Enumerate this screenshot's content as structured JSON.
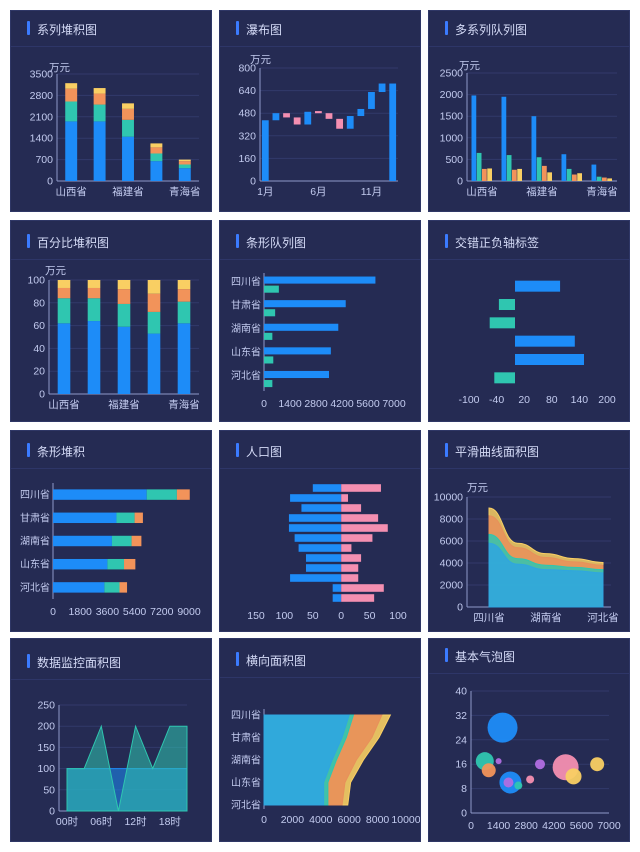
{
  "chart_data": [
    {
      "id": "p1",
      "type": "bar",
      "title": "系列堆积图",
      "stacked": true,
      "unit": "万元",
      "categories": [
        "山西省",
        "",
        "福建省",
        "",
        "青海省"
      ],
      "x_tick_labels": [
        "山西省",
        "福建省",
        "青海省"
      ],
      "y_ticks": [
        "0",
        "700",
        "1400",
        "2100",
        "2800",
        "3500"
      ],
      "ylim": [
        0,
        3500
      ],
      "series": [
        {
          "values": [
            1950,
            1950,
            1450,
            650,
            420
          ],
          "color": "#1d8cf8"
        },
        {
          "values": [
            650,
            550,
            550,
            250,
            120
          ],
          "color": "#2fc6b0"
        },
        {
          "values": [
            420,
            360,
            360,
            200,
            110
          ],
          "color": "#f2935a"
        },
        {
          "values": [
            180,
            180,
            180,
            130,
            50
          ],
          "color": "#f9cf63"
        }
      ]
    },
    {
      "id": "p2",
      "type": "bar",
      "title": "瀑布图",
      "chart_subtype": "waterfall",
      "unit": "万元",
      "x_tick_labels": [
        "1月",
        "6月",
        "11月"
      ],
      "x_tick_index": [
        0,
        5,
        10
      ],
      "y_ticks": [
        "0",
        "160",
        "320",
        "480",
        "640",
        "800"
      ],
      "ylim": [
        0,
        800
      ],
      "bars": [
        {
          "low": 0,
          "high": 430,
          "color": "#1d8cf8"
        },
        {
          "low": 430,
          "high": 480,
          "color": "#1d8cf8"
        },
        {
          "low": 450,
          "high": 480,
          "color": "#f48fb1"
        },
        {
          "low": 400,
          "high": 450,
          "color": "#f48fb1"
        },
        {
          "low": 400,
          "high": 490,
          "color": "#1d8cf8"
        },
        {
          "low": 480,
          "high": 495,
          "color": "#f48fb1"
        },
        {
          "low": 440,
          "high": 480,
          "color": "#f48fb1"
        },
        {
          "low": 370,
          "high": 440,
          "color": "#f48fb1"
        },
        {
          "low": 370,
          "high": 460,
          "color": "#1d8cf8"
        },
        {
          "low": 460,
          "high": 510,
          "color": "#1d8cf8"
        },
        {
          "low": 510,
          "high": 630,
          "color": "#1d8cf8"
        },
        {
          "low": 630,
          "high": 690,
          "color": "#1d8cf8"
        },
        {
          "low": 0,
          "high": 690,
          "color": "#1d8cf8"
        }
      ]
    },
    {
      "id": "p3",
      "type": "bar",
      "title": "多系列队列图",
      "grouped": true,
      "unit": "万元",
      "categories": [
        "山西省",
        "",
        "福建省",
        "",
        "青海省"
      ],
      "x_tick_labels": [
        "山西省",
        "福建省",
        "青海省"
      ],
      "y_ticks": [
        "0",
        "500",
        "1000",
        "1500",
        "2000",
        "2500"
      ],
      "ylim": [
        0,
        2500
      ],
      "series": [
        {
          "values": [
            1980,
            1950,
            1500,
            620,
            380
          ],
          "color": "#1d8cf8"
        },
        {
          "values": [
            650,
            600,
            550,
            280,
            100
          ],
          "color": "#2fc6b0"
        },
        {
          "values": [
            280,
            260,
            350,
            150,
            80
          ],
          "color": "#f2935a"
        },
        {
          "values": [
            290,
            280,
            200,
            180,
            60
          ],
          "color": "#f9cf63"
        }
      ]
    },
    {
      "id": "p4",
      "type": "bar",
      "title": "百分比堆积图",
      "stacked": true,
      "unit": "万元",
      "categories": [
        "山西省",
        "",
        "福建省",
        "",
        "青海省"
      ],
      "x_tick_labels": [
        "山西省",
        "福建省",
        "青海省"
      ],
      "y_ticks": [
        "0",
        "20",
        "40",
        "60",
        "80",
        "100"
      ],
      "ylim": [
        0,
        100
      ],
      "series": [
        {
          "values": [
            62,
            64,
            59,
            53,
            62
          ],
          "color": "#1d8cf8"
        },
        {
          "values": [
            22,
            20,
            20,
            19,
            19
          ],
          "color": "#2fc6b0"
        },
        {
          "values": [
            9,
            9,
            13,
            16,
            11
          ],
          "color": "#f2935a"
        },
        {
          "values": [
            7,
            7,
            8,
            12,
            8
          ],
          "color": "#f9cf63"
        }
      ]
    },
    {
      "id": "p5",
      "type": "bar",
      "title": "条形队列图",
      "orientation": "horizontal",
      "grouped": true,
      "categories": [
        "四川省",
        "甘肃省",
        "湖南省",
        "山东省",
        "河北省"
      ],
      "x_ticks": [
        "0",
        "1400",
        "2800",
        "4200",
        "5600",
        "7000"
      ],
      "xlim": [
        0,
        7000
      ],
      "series": [
        {
          "values": [
            6000,
            4400,
            4000,
            3600,
            3500
          ],
          "color": "#1d8cf8"
        },
        {
          "values": [
            800,
            600,
            450,
            500,
            450
          ],
          "color": "#2fc6b0"
        }
      ]
    },
    {
      "id": "p6",
      "type": "bar",
      "title": "交错正负轴标签",
      "orientation": "horizontal",
      "x_ticks": [
        "-100",
        "-40",
        "20",
        "80",
        "140",
        "200"
      ],
      "xlim": [
        -100,
        200
      ],
      "bars": [
        {
          "value": 98,
          "color": "#1d8cf8"
        },
        {
          "value": -35,
          "color": "#2fc6b0"
        },
        {
          "value": -55,
          "color": "#2fc6b0"
        },
        {
          "value": 130,
          "color": "#1d8cf8"
        },
        {
          "value": 150,
          "color": "#1d8cf8"
        },
        {
          "value": -45,
          "color": "#2fc6b0"
        }
      ]
    },
    {
      "id": "p7",
      "type": "bar",
      "title": "条形堆积",
      "orientation": "horizontal",
      "stacked": true,
      "categories": [
        "四川省",
        "甘肃省",
        "湖南省",
        "山东省",
        "河北省"
      ],
      "x_ticks": [
        "0",
        "1800",
        "3600",
        "5400",
        "7200",
        "9000"
      ],
      "xlim": [
        0,
        9000
      ],
      "series": [
        {
          "values": [
            6200,
            4200,
            3900,
            3600,
            3400
          ],
          "color": "#1d8cf8"
        },
        {
          "values": [
            2000,
            1200,
            1300,
            1100,
            1000
          ],
          "color": "#2fc6b0"
        },
        {
          "values": [
            850,
            550,
            650,
            750,
            500
          ],
          "color": "#f2935a"
        }
      ]
    },
    {
      "id": "p8",
      "type": "bar",
      "title": "人口图",
      "orientation": "horizontal",
      "chart_subtype": "population-pyramid",
      "x_ticks": [
        "150",
        "100",
        "50",
        "0",
        "50",
        "100"
      ],
      "xlim": [
        -150,
        100
      ],
      "series": [
        {
          "values": [
            50,
            90,
            70,
            92,
            92,
            82,
            75,
            62,
            62,
            90,
            15,
            15
          ],
          "color": "#1d8cf8",
          "side": "left"
        },
        {
          "values": [
            70,
            12,
            35,
            65,
            82,
            55,
            18,
            35,
            30,
            30,
            75,
            58
          ],
          "color": "#f48fb1",
          "side": "right"
        }
      ]
    },
    {
      "id": "p9",
      "type": "area",
      "title": "平滑曲线面积图",
      "stacked": true,
      "smooth": true,
      "unit": "万元",
      "categories": [
        "四川省",
        "",
        "湖南省",
        "",
        "河北省"
      ],
      "x_tick_labels": [
        "四川省",
        "湖南省",
        "河北省"
      ],
      "y_ticks": [
        "0",
        "2000",
        "4000",
        "6000",
        "8000",
        "10000"
      ],
      "ylim": [
        0,
        10000
      ],
      "series": [
        {
          "values": [
            5800,
            3900,
            3400,
            3300,
            3100
          ],
          "color": "#2fa6e0"
        },
        {
          "values": [
            800,
            500,
            400,
            300,
            300
          ],
          "color": "#2fc6b0"
        },
        {
          "values": [
            1700,
            1000,
            700,
            500,
            400
          ],
          "color": "#e8905a"
        },
        {
          "values": [
            700,
            400,
            350,
            300,
            250
          ],
          "color": "#f9cf63"
        }
      ]
    },
    {
      "id": "p10",
      "type": "area",
      "title": "数据监控面积图",
      "x_tick_labels": [
        "00时",
        "06时",
        "12时",
        "18时"
      ],
      "y_ticks": [
        "0",
        "50",
        "100",
        "150",
        "200",
        "250"
      ],
      "ylim": [
        0,
        250
      ],
      "x": [
        0,
        3,
        6,
        9,
        12,
        15,
        18,
        21
      ],
      "series": [
        {
          "values": [
            100,
            100,
            100,
            100,
            100,
            100,
            100,
            100
          ],
          "color": "#1d8cf8"
        },
        {
          "values": [
            100,
            100,
            200,
            0,
            200,
            100,
            200,
            200
          ],
          "color": "#2fc6b0"
        }
      ]
    },
    {
      "id": "p11",
      "type": "area",
      "title": "横向面积图",
      "orientation": "horizontal",
      "stacked": true,
      "categories": [
        "四川省",
        "甘肃省",
        "湖南省",
        "山东省",
        "河北省"
      ],
      "x_ticks": [
        "0",
        "2000",
        "4000",
        "6000",
        "8000",
        "10000"
      ],
      "xlim": [
        0,
        10000
      ],
      "series": [
        {
          "values": [
            6000,
            5500,
            4800,
            4200,
            4200
          ],
          "color": "#2fa6e0"
        },
        {
          "values": [
            300,
            300,
            300,
            300,
            300
          ],
          "color": "#2fc6b0"
        },
        {
          "values": [
            2000,
            1800,
            1400,
            1200,
            1000
          ],
          "color": "#e8905a"
        },
        {
          "values": [
            600,
            500,
            500,
            400,
            400
          ],
          "color": "#f9cf63"
        }
      ]
    },
    {
      "id": "p12",
      "type": "scatter",
      "title": "基本气泡图",
      "chart_subtype": "bubble",
      "x_ticks": [
        "0",
        "1400",
        "2800",
        "4200",
        "5600",
        "7000"
      ],
      "xlim": [
        0,
        7000
      ],
      "y_ticks": [
        "0",
        "8",
        "16",
        "24",
        "32",
        "40"
      ],
      "ylim": [
        0,
        40
      ],
      "points": [
        {
          "x": 1600,
          "y": 28,
          "r": 15,
          "color": "#1d8cf8"
        },
        {
          "x": 700,
          "y": 17,
          "r": 9,
          "color": "#2fc6b0"
        },
        {
          "x": 900,
          "y": 14,
          "r": 7,
          "color": "#f2935a"
        },
        {
          "x": 1400,
          "y": 17,
          "r": 3,
          "color": "#b06ee0"
        },
        {
          "x": 2000,
          "y": 10,
          "r": 11,
          "color": "#1d8cf8"
        },
        {
          "x": 1900,
          "y": 10,
          "r": 5,
          "color": "#b06ee0"
        },
        {
          "x": 2400,
          "y": 9,
          "r": 4,
          "color": "#2fc6b0"
        },
        {
          "x": 3000,
          "y": 11,
          "r": 4,
          "color": "#f48fb1"
        },
        {
          "x": 3500,
          "y": 16,
          "r": 5,
          "color": "#b06ee0"
        },
        {
          "x": 4800,
          "y": 15,
          "r": 13,
          "color": "#f48fb1"
        },
        {
          "x": 5200,
          "y": 12,
          "r": 8,
          "color": "#f9cf63"
        },
        {
          "x": 6400,
          "y": 16,
          "r": 7,
          "color": "#f9cf63"
        }
      ]
    }
  ]
}
